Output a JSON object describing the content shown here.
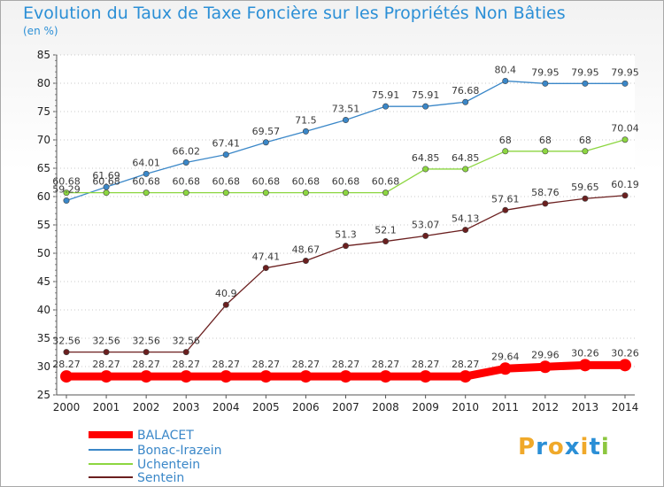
{
  "title": "Evolution du Taux de Taxe Foncière sur les Propriétés Non Bâties",
  "unit": "(en %)",
  "logo": {
    "text": "Proxiti",
    "letters": [
      "P",
      "r",
      "o",
      "x",
      "i",
      "t",
      "i"
    ],
    "colors": [
      "#f0a92a",
      "#2b8fd6",
      "#f0a92a",
      "#2b8fd6",
      "#f0a92a",
      "#2b8fd6",
      "#8cc63f"
    ]
  },
  "chart_data": {
    "type": "line",
    "x": [
      "2000",
      "2001",
      "2002",
      "2003",
      "2004",
      "2005",
      "2006",
      "2007",
      "2008",
      "2009",
      "2010",
      "2011",
      "2012",
      "2013",
      "2014"
    ],
    "ylim": [
      25,
      85
    ],
    "yticks": [
      25,
      30,
      35,
      40,
      45,
      50,
      55,
      60,
      65,
      70,
      75,
      80,
      85
    ],
    "grid": "horizontal dotted",
    "legend_position": "bottom-left",
    "series": [
      {
        "name": "BALACET",
        "color": "#ff0000",
        "values": [
          28.27,
          28.27,
          28.27,
          28.27,
          28.27,
          28.27,
          28.27,
          28.27,
          28.27,
          28.27,
          28.27,
          29.64,
          29.96,
          30.26,
          30.26
        ],
        "labels": [
          "28.27",
          "28.27",
          "28.27",
          "28.27",
          "28.27",
          "28.27",
          "28.27",
          "28.27",
          "28.27",
          "28.27",
          "28.27",
          "29.64",
          "29.96",
          "30.26",
          "30.26"
        ]
      },
      {
        "name": "Bonac-Irazein",
        "color": "#3a87c8",
        "values": [
          59.29,
          61.69,
          64.01,
          66.02,
          67.41,
          69.57,
          71.5,
          73.51,
          75.91,
          75.91,
          76.68,
          80.4,
          79.95,
          79.95,
          79.95
        ],
        "labels": [
          "59.29",
          "61.69",
          "64.01",
          "66.02",
          "67.41",
          "69.57",
          "71.5",
          "73.51",
          "75.91",
          "75.91",
          "76.68",
          "80.4",
          "79.95",
          "79.95",
          "79.95"
        ]
      },
      {
        "name": "Uchentein",
        "color": "#8cd640",
        "values": [
          60.68,
          60.68,
          60.68,
          60.68,
          60.68,
          60.68,
          60.68,
          60.68,
          60.68,
          64.85,
          64.85,
          68,
          68,
          68,
          70.04
        ],
        "labels": [
          "60.68",
          "60.68",
          "60.68",
          "60.68",
          "60.68",
          "60.68",
          "60.68",
          "60.68",
          "60.68",
          "64.85",
          "64.85",
          "68",
          "68",
          "68",
          "70.04"
        ]
      },
      {
        "name": "Sentein",
        "color": "#6b1f1f",
        "values": [
          32.56,
          32.56,
          32.56,
          32.56,
          40.9,
          47.41,
          48.67,
          51.3,
          52.1,
          53.07,
          54.13,
          57.61,
          58.76,
          59.65,
          60.19
        ],
        "labels": [
          "32.56",
          "32.56",
          "32.56",
          "32.56",
          "40.9",
          "47.41",
          "48.67",
          "51.3",
          "52.1",
          "53.07",
          "54.13",
          "57.61",
          "58.76",
          "59.65",
          "60.19"
        ]
      }
    ]
  }
}
